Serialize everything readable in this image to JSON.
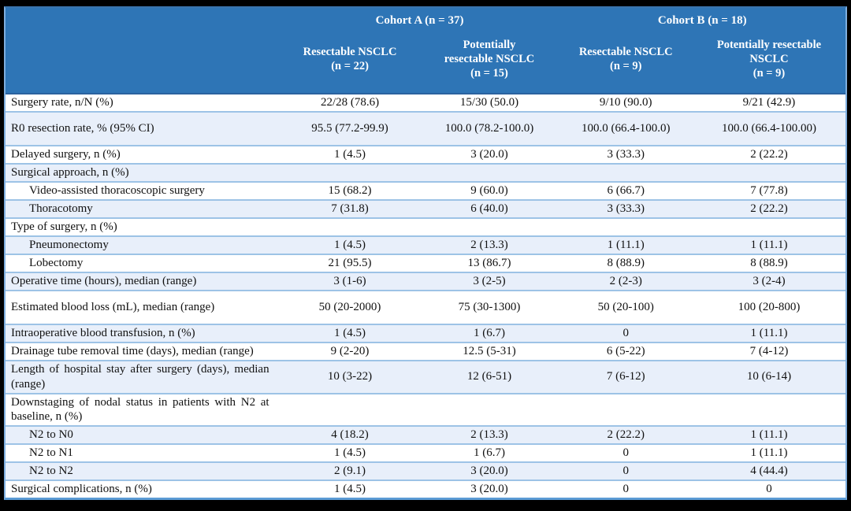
{
  "colors": {
    "header_bg": "#2e75b6",
    "header_text": "#ffffff",
    "row_alt_bg": "#e8effa",
    "row_border": "#9dc3e6",
    "outer_border": "#5b9bd5",
    "frame": "#000000"
  },
  "table": {
    "header": {
      "cohort_a": "Cohort A (n = 37)",
      "cohort_b": "Cohort B (n = 18)",
      "columns": [
        "Resectable NSCLC\n(n = 22)",
        "Potentially\nresectable NSCLC\n(n = 15)",
        "Resectable NSCLC\n(n = 9)",
        "Potentially resectable\nNSCLC\n(n = 9)"
      ]
    },
    "rows": [
      {
        "label": "Surgery rate, n/N (%)",
        "indent": false,
        "tall": false,
        "values": [
          "22/28 (78.6)",
          "15/30 (50.0)",
          "9/10 (90.0)",
          "9/21 (42.9)"
        ]
      },
      {
        "label": "R0 resection rate, % (95% CI)",
        "indent": false,
        "tall": true,
        "values": [
          "95.5 (77.2-99.9)",
          "100.0 (78.2-100.0)",
          "100.0 (66.4-100.0)",
          "100.0 (66.4-100.00)"
        ]
      },
      {
        "label": "Delayed surgery, n (%)",
        "indent": false,
        "tall": false,
        "values": [
          "1 (4.5)",
          "3 (20.0)",
          "3 (33.3)",
          "2 (22.2)"
        ]
      },
      {
        "label": "Surgical approach, n (%)",
        "indent": false,
        "tall": false,
        "values": [
          "",
          "",
          "",
          ""
        ]
      },
      {
        "label": "Video-assisted thoracoscopic surgery",
        "indent": true,
        "tall": false,
        "values": [
          "15 (68.2)",
          "9 (60.0)",
          "6 (66.7)",
          "7 (77.8)"
        ]
      },
      {
        "label": "Thoracotomy",
        "indent": true,
        "tall": false,
        "values": [
          "7 (31.8)",
          "6 (40.0)",
          "3 (33.3)",
          "2 (22.2)"
        ]
      },
      {
        "label": "Type of surgery, n (%)",
        "indent": false,
        "tall": false,
        "values": [
          "",
          "",
          "",
          ""
        ]
      },
      {
        "label": "Pneumonectomy",
        "indent": true,
        "tall": false,
        "values": [
          "1 (4.5)",
          "2 (13.3)",
          "1 (11.1)",
          "1 (11.1)"
        ]
      },
      {
        "label": "Lobectomy",
        "indent": true,
        "tall": false,
        "values": [
          "21 (95.5)",
          "13 (86.7)",
          "8 (88.9)",
          "8 (88.9)"
        ]
      },
      {
        "label": "Operative time (hours), median (range)",
        "indent": false,
        "tall": false,
        "values": [
          "3 (1-6)",
          "3 (2-5)",
          "2 (2-3)",
          "3 (2-4)"
        ]
      },
      {
        "label": "Estimated blood loss (mL), median (range)",
        "indent": false,
        "tall": true,
        "values": [
          "50 (20-2000)",
          "75 (30-1300)",
          "50 (20-100)",
          "100 (20-800)"
        ]
      },
      {
        "label": "Intraoperative blood transfusion, n (%)",
        "indent": false,
        "tall": false,
        "values": [
          "1 (4.5)",
          "1 (6.7)",
          "0",
          "1 (11.1)"
        ]
      },
      {
        "label": "Drainage tube removal time (days), median (range)",
        "indent": false,
        "tall": false,
        "values": [
          "9 (2-20)",
          "12.5 (5-31)",
          "6 (5-22)",
          "7 (4-12)"
        ]
      },
      {
        "label": "Length of hospital stay after surgery (days), median (range)",
        "indent": false,
        "tall": false,
        "values": [
          "10 (3-22)",
          "12 (6-51)",
          "7 (6-12)",
          "10 (6-14)"
        ]
      },
      {
        "label": "Downstaging of nodal status in patients with N2 at baseline, n (%)",
        "indent": false,
        "tall": false,
        "values": [
          "",
          "",
          "",
          ""
        ]
      },
      {
        "label": "N2 to N0",
        "indent": true,
        "tall": false,
        "values": [
          "4 (18.2)",
          "2 (13.3)",
          "2 (22.2)",
          "1 (11.1)"
        ]
      },
      {
        "label": "N2 to N1",
        "indent": true,
        "tall": false,
        "values": [
          "1 (4.5)",
          "1 (6.7)",
          "0",
          "1 (11.1)"
        ]
      },
      {
        "label": "N2 to N2",
        "indent": true,
        "tall": false,
        "values": [
          "2 (9.1)",
          "3 (20.0)",
          "0",
          "4 (44.4)"
        ]
      },
      {
        "label": "Surgical complications, n (%)",
        "indent": false,
        "tall": false,
        "values": [
          "1 (4.5)",
          "3 (20.0)",
          "0",
          "0"
        ]
      }
    ]
  }
}
